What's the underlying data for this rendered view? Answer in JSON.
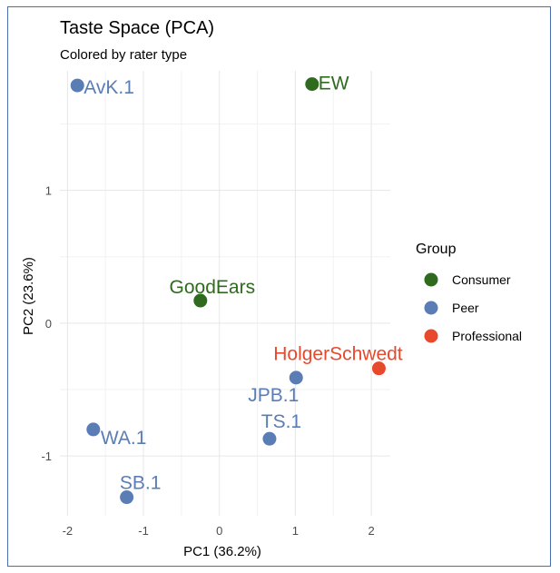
{
  "chart_data": {
    "type": "scatter",
    "title": "Taste Space (PCA)",
    "subtitle": "Colored by rater type",
    "xlabel": "PC1 (36.2%)",
    "ylabel": "PC2 (23.6%)",
    "xlim": [
      -2.1,
      2.25
    ],
    "ylim": [
      -1.45,
      1.9
    ],
    "xticks": [
      -2,
      -1,
      0,
      1,
      2
    ],
    "yticks": [
      -1,
      0,
      1
    ],
    "grid": true,
    "legend": {
      "title": "Group",
      "position": "right",
      "entries": [
        {
          "label": "Consumer",
          "color": "#2e6b1e"
        },
        {
          "label": "Peer",
          "color": "#5a7db5"
        },
        {
          "label": "Professional",
          "color": "#e8482b"
        }
      ]
    },
    "points": [
      {
        "label": "AvK.1",
        "x": -1.87,
        "y": 1.79,
        "group": "Peer"
      },
      {
        "label": "EW",
        "x": 1.22,
        "y": 1.8,
        "group": "Consumer"
      },
      {
        "label": "GoodEars",
        "x": -0.25,
        "y": 0.17,
        "group": "Consumer"
      },
      {
        "label": "HolgerSchwedt",
        "x": 2.1,
        "y": -0.34,
        "group": "Professional"
      },
      {
        "label": "JPB.1",
        "x": 1.01,
        "y": -0.41,
        "group": "Peer"
      },
      {
        "label": "TS.1",
        "x": 0.66,
        "y": -0.87,
        "group": "Peer"
      },
      {
        "label": "WA.1",
        "x": -1.66,
        "y": -0.8,
        "group": "Peer"
      },
      {
        "label": "SB.1",
        "x": -1.22,
        "y": -1.31,
        "group": "Peer"
      }
    ]
  }
}
